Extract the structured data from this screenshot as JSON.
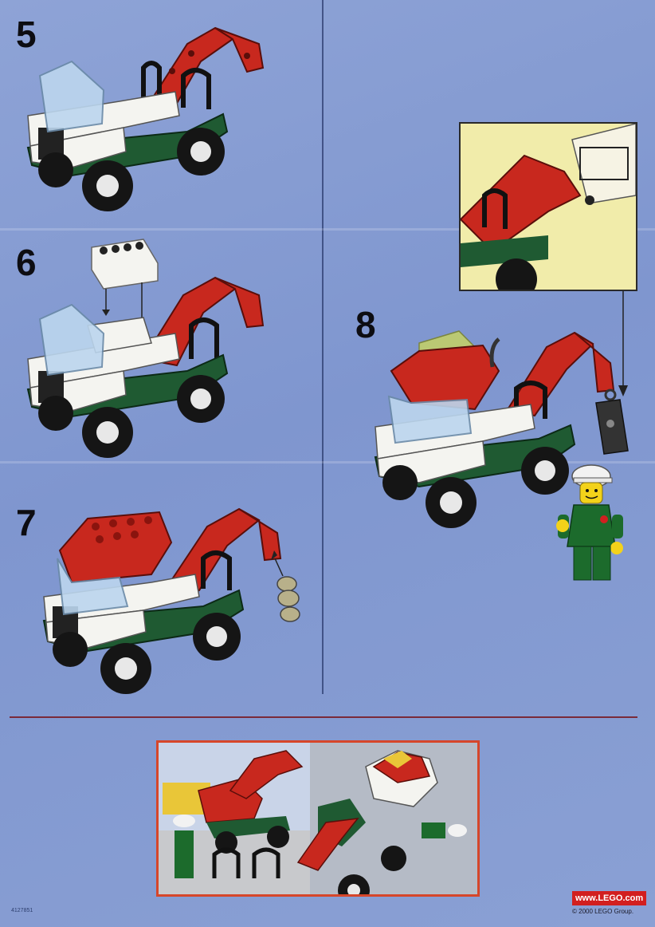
{
  "steps": [
    {
      "number": "5"
    },
    {
      "number": "6"
    },
    {
      "number": "7"
    },
    {
      "number": "8"
    }
  ],
  "footer": {
    "website": "www.LEGO.com",
    "copyright": "© 2000 LEGO Group.",
    "part_number": "4127851"
  },
  "colors": {
    "background": "#8ea3d6",
    "brick_red": "#c8281e",
    "brick_white": "#f4f4f0",
    "chassis_green": "#1f5a32",
    "tyre_black": "#151515",
    "windshield": "#bcd6ee",
    "callout_bg": "#f1ecaa",
    "photo_border": "#d6462a"
  },
  "icons": [
    "arrow-down-icon",
    "arrow-up-icon",
    "lego-logo-icon"
  ]
}
